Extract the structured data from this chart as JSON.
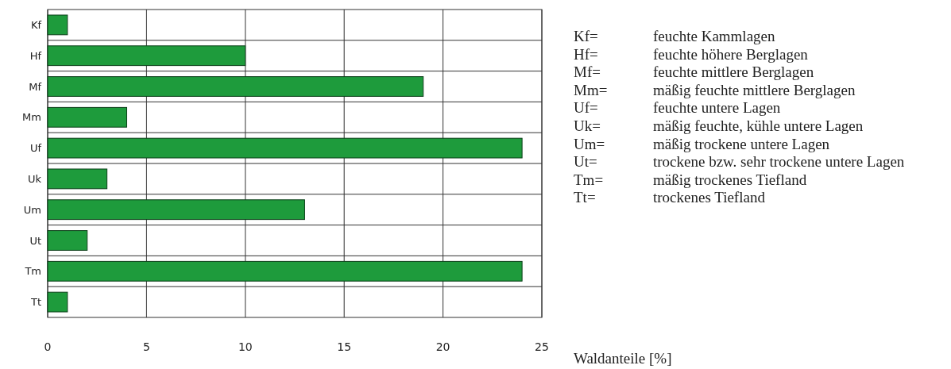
{
  "chart_data": {
    "type": "bar",
    "orientation": "horizontal",
    "xlabel": "Waldanteile [%]",
    "categories": [
      "Kf",
      "Hf",
      "Mf",
      "Mm",
      "Uf",
      "Uk",
      "Um",
      "Ut",
      "Tm",
      "Tt"
    ],
    "values": [
      1,
      10,
      19,
      4,
      24,
      3,
      13,
      2,
      24,
      1
    ],
    "color": "#1e9b3c",
    "xlim": [
      0,
      25
    ],
    "xticks": [
      0,
      5,
      10,
      15,
      20,
      25
    ],
    "grid": true,
    "annotations": [
      "Kf= feuchte Kammlagen",
      "Hf= feuchte höhere Berglagen",
      "Mf= feuchte mittlere Berglagen",
      "Mm= mäßig feuchte mittlere Berglagen",
      "Uf= feuchte untere Lagen",
      "Uk= mäßig feuchte, kühle untere Lagen",
      "Um= mäßig trockene untere Lagen",
      "Ut= trockene bzw. sehr trockene untere Lagen",
      "Tm= mäßig trockenes Tiefland",
      "Tt= trockenes Tiefland"
    ]
  }
}
